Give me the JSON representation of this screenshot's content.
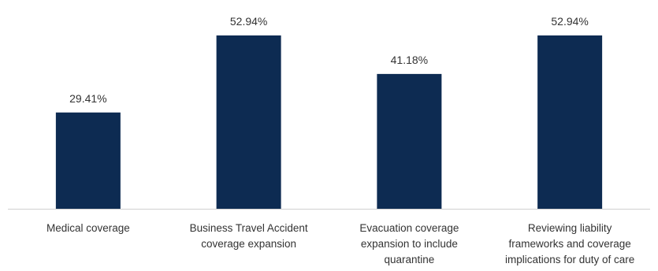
{
  "chart_data": {
    "type": "bar",
    "categories": [
      [
        "Medical coverage"
      ],
      [
        "Business Travel Accident",
        "coverage expansion"
      ],
      [
        "Evacuation coverage",
        "expansion to include",
        "quarantine"
      ],
      [
        "Reviewing liability",
        "frameworks and coverage",
        "implications for duty of care"
      ]
    ],
    "values": [
      29.41,
      52.94,
      41.18,
      52.94
    ],
    "value_labels": [
      "29.41%",
      "52.94%",
      "41.18%",
      "52.94%"
    ],
    "ylim": [
      0,
      52.94
    ],
    "bar_color": "#0d2b52",
    "axis_color": "#d0d0d0",
    "grid": false,
    "legend": "none"
  }
}
